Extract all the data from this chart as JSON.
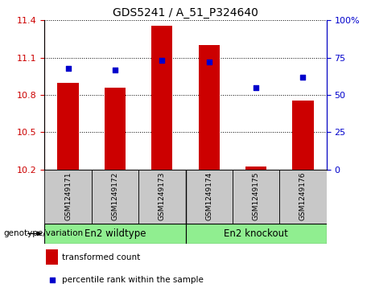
{
  "title": "GDS5241 / A_51_P324640",
  "samples": [
    "GSM1249171",
    "GSM1249172",
    "GSM1249173",
    "GSM1249174",
    "GSM1249175",
    "GSM1249176"
  ],
  "red_values": [
    10.9,
    10.855,
    11.355,
    11.2,
    10.225,
    10.755
  ],
  "blue_values": [
    68,
    67,
    73,
    72,
    55,
    62
  ],
  "baseline": 10.2,
  "ylim_left": [
    10.2,
    11.4
  ],
  "ylim_right": [
    0,
    100
  ],
  "yticks_left": [
    10.2,
    10.5,
    10.8,
    11.1,
    11.4
  ],
  "yticks_right": [
    0,
    25,
    50,
    75,
    100
  ],
  "group1_label": "En2 wildtype",
  "group2_label": "En2 knockout",
  "group_color": "#90EE90",
  "bar_color": "#CC0000",
  "dot_color": "#0000CC",
  "tick_label_area_color": "#C8C8C8",
  "left_axis_color": "#CC0000",
  "right_axis_color": "#0000CC",
  "genotype_label": "genotype/variation",
  "legend_bar_label": "transformed count",
  "legend_dot_label": "percentile rank within the sample",
  "fig_width": 4.61,
  "fig_height": 3.63,
  "dpi": 100
}
